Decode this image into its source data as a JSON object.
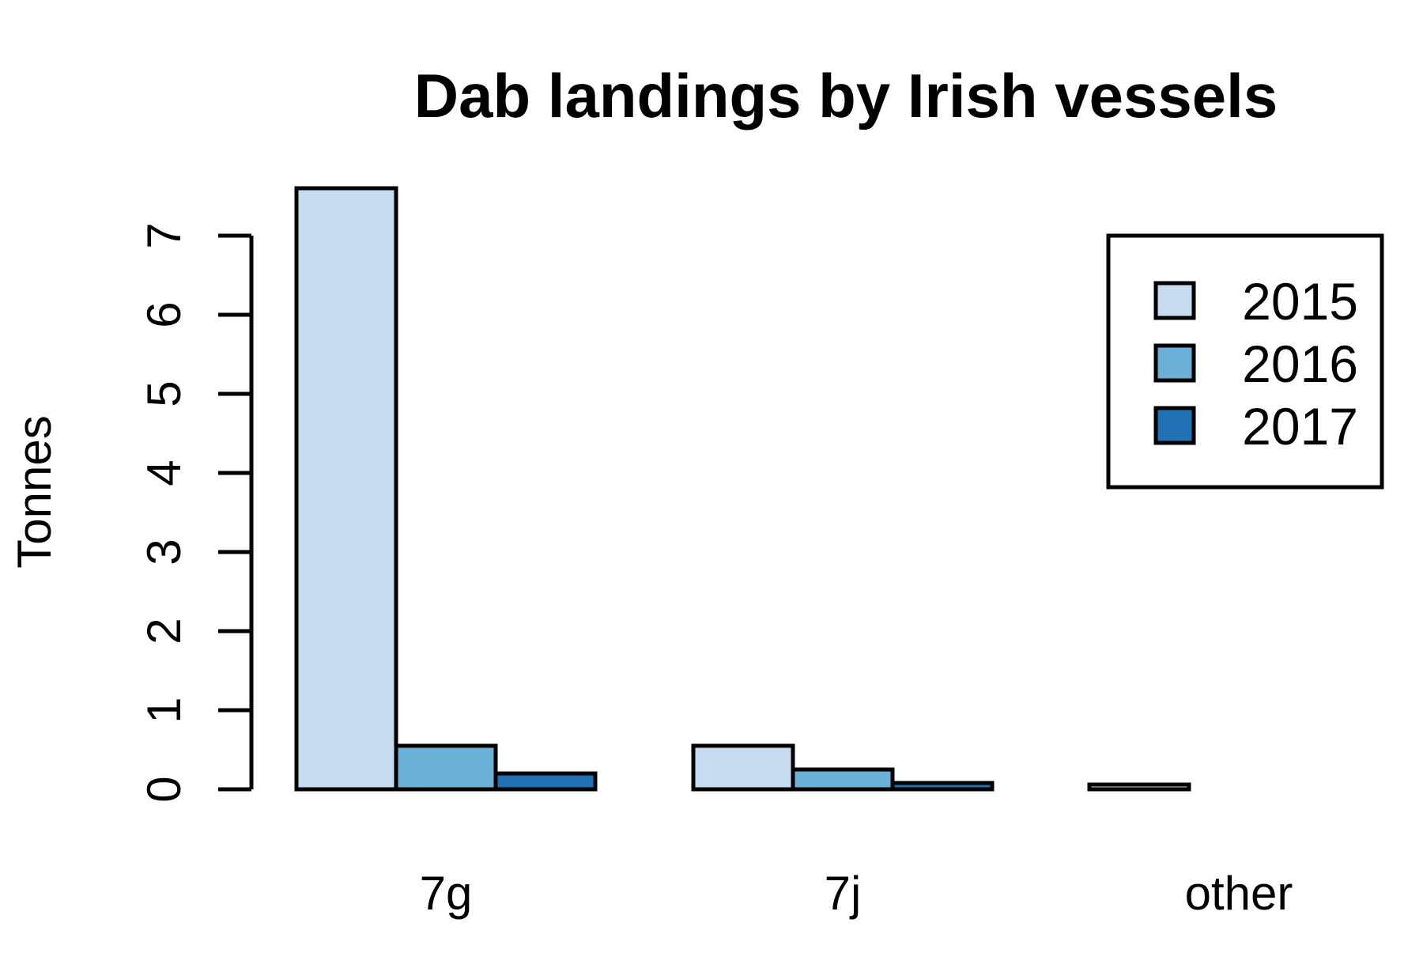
{
  "chart_data": {
    "type": "bar",
    "title": "Dab landings by Irish vessels",
    "xlabel": "",
    "ylabel": "Tonnes",
    "categories": [
      "7g",
      "7j",
      "other"
    ],
    "series": [
      {
        "name": "2015",
        "color": "#c6dbef",
        "values": [
          7.6,
          0.55,
          0.06
        ]
      },
      {
        "name": "2016",
        "color": "#6baed6",
        "values": [
          0.55,
          0.25,
          0.0
        ]
      },
      {
        "name": "2017",
        "color": "#2171b5",
        "values": [
          0.2,
          0.08,
          0.0
        ]
      }
    ],
    "yticks": [
      0,
      1,
      2,
      3,
      4,
      5,
      6,
      7
    ],
    "ylim": [
      0,
      7.6
    ],
    "grid": false,
    "legend_position": "top-right"
  }
}
